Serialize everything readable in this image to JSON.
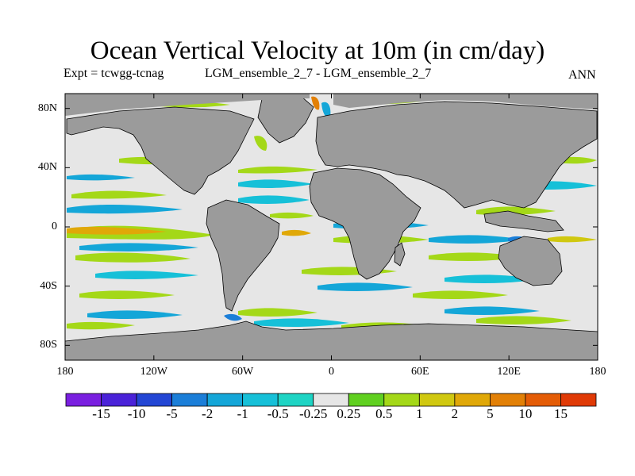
{
  "title": "Ocean Vertical Velocity at 10m (in cm/day)",
  "subtitle_left": "Expt = tcwgg-tcnag",
  "subtitle_center": "LGM_ensemble_2_7 - LGM_ensemble_2_7",
  "subtitle_right": "ANN",
  "colors": {
    "land": "#9b9b9b",
    "near_zero": "#e6e6e6",
    "coast": "#000000"
  },
  "lat_ticks": [
    {
      "lat": 80,
      "label": "80N"
    },
    {
      "lat": 40,
      "label": "40N"
    },
    {
      "lat": 0,
      "label": "0"
    },
    {
      "lat": -40,
      "label": "40S"
    },
    {
      "lat": -80,
      "label": "80S"
    }
  ],
  "lon_ticks": [
    {
      "lon": -180,
      "label": "180"
    },
    {
      "lon": -120,
      "label": "120W"
    },
    {
      "lon": -60,
      "label": "60W"
    },
    {
      "lon": 0,
      "label": "0"
    },
    {
      "lon": 60,
      "label": "60E"
    },
    {
      "lon": 120,
      "label": "120E"
    },
    {
      "lon": 180,
      "label": "180"
    }
  ],
  "colorbar": {
    "colors": [
      "#7a1fe0",
      "#4a22d8",
      "#2346d4",
      "#1b7ed8",
      "#14a6d8",
      "#16c0d8",
      "#1ed4c4",
      "#e6e6e6",
      "#60d020",
      "#a4d818",
      "#d0c810",
      "#e0a808",
      "#e28006",
      "#e45c06",
      "#e03a06"
    ],
    "labels": [
      "-15",
      "-10",
      "-5",
      "-2",
      "-1",
      "-0.5",
      "-0.25",
      "0.25",
      "0.5",
      "1",
      "2",
      "5",
      "10",
      "15"
    ]
  }
}
